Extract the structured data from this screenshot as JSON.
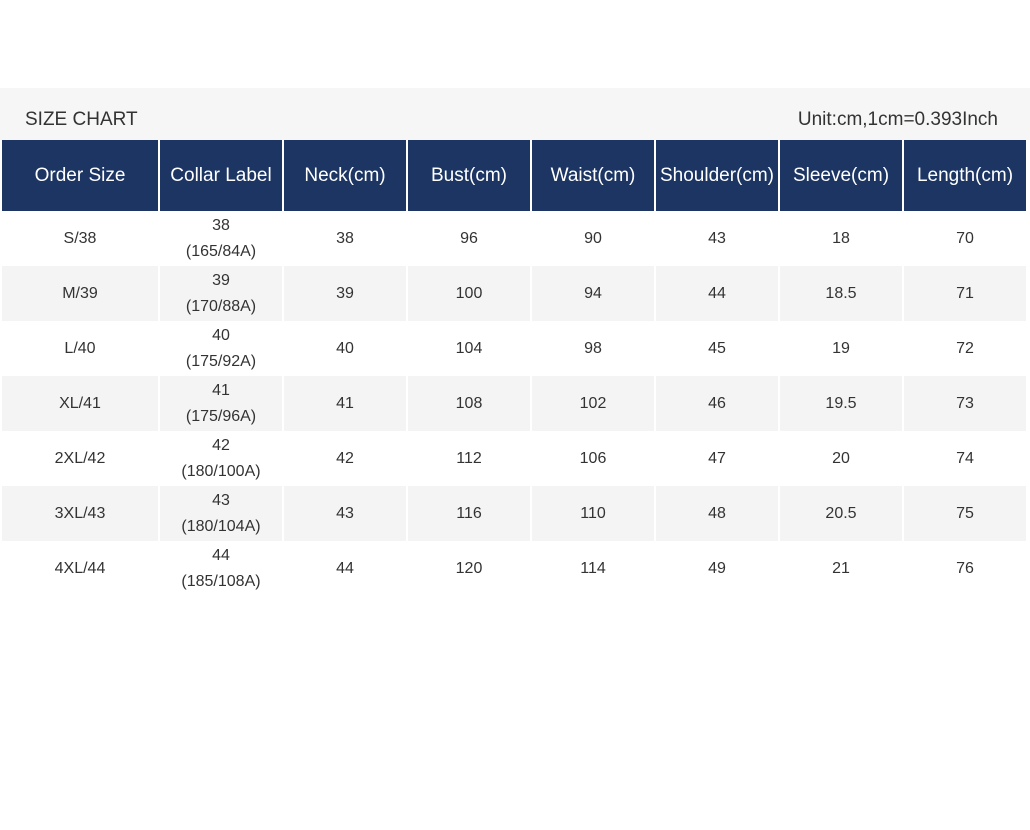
{
  "header": {
    "title": "SIZE CHART",
    "unit_note": "Unit:cm,1cm=0.393Inch"
  },
  "columns": [
    "Order Size",
    "Collar Label",
    "Neck(cm)",
    "Bust(cm)",
    "Waist(cm)",
    "Shoulder(cm)",
    "Sleeve(cm)",
    "Length(cm)"
  ],
  "rows": [
    {
      "order_size": "S/38",
      "collar": "38",
      "collar_sub": "(165/84A)",
      "neck": "38",
      "bust": "96",
      "waist": "90",
      "shoulder": "43",
      "sleeve": "18",
      "length": "70"
    },
    {
      "order_size": "M/39",
      "collar": "39",
      "collar_sub": "(170/88A)",
      "neck": "39",
      "bust": "100",
      "waist": "94",
      "shoulder": "44",
      "sleeve": "18.5",
      "length": "71"
    },
    {
      "order_size": "L/40",
      "collar": "40",
      "collar_sub": "(175/92A)",
      "neck": "40",
      "bust": "104",
      "waist": "98",
      "shoulder": "45",
      "sleeve": "19",
      "length": "72"
    },
    {
      "order_size": "XL/41",
      "collar": "41",
      "collar_sub": "(175/96A)",
      "neck": "41",
      "bust": "108",
      "waist": "102",
      "shoulder": "46",
      "sleeve": "19.5",
      "length": "73"
    },
    {
      "order_size": "2XL/42",
      "collar": "42",
      "collar_sub": "(180/100A)",
      "neck": "42",
      "bust": "112",
      "waist": "106",
      "shoulder": "47",
      "sleeve": "20",
      "length": "74"
    },
    {
      "order_size": "3XL/43",
      "collar": "43",
      "collar_sub": "(180/104A)",
      "neck": "43",
      "bust": "116",
      "waist": "110",
      "shoulder": "48",
      "sleeve": "20.5",
      "length": "75"
    },
    {
      "order_size": "4XL/44",
      "collar": "44",
      "collar_sub": "(185/108A)",
      "neck": "44",
      "bust": "120",
      "waist": "114",
      "shoulder": "49",
      "sleeve": "21",
      "length": "76"
    }
  ],
  "colors": {
    "header_bg": "#1c3563",
    "header_text": "#ffffff",
    "stripe": "#f4f4f4"
  }
}
